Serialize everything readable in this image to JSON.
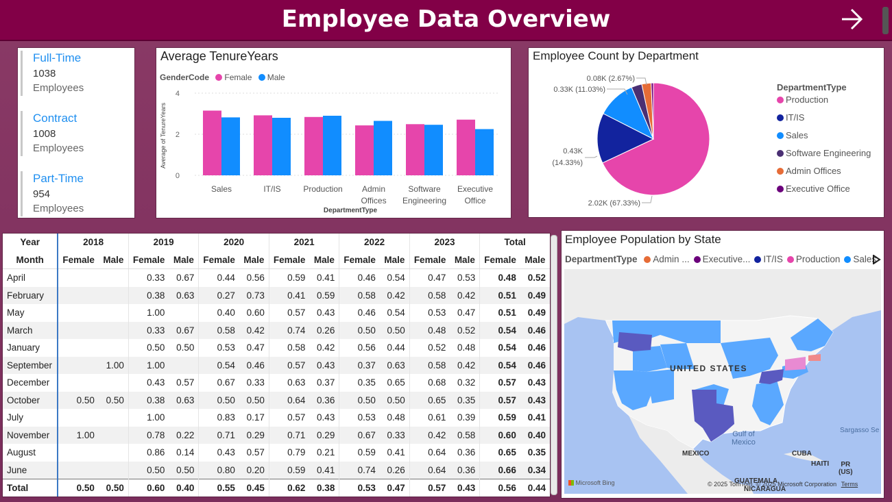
{
  "header": {
    "title": "Employee Data Overview",
    "next_icon": "arrow-right-icon"
  },
  "kpis": [
    {
      "label": "Full-Time",
      "value": "1038",
      "unit": "Employees"
    },
    {
      "label": "Contract",
      "value": "1008",
      "unit": "Employees"
    },
    {
      "label": "Part-Time",
      "value": "954",
      "unit": "Employees"
    }
  ],
  "tenure_chart": {
    "title": "Average TenureYears",
    "legend_title": "GenderCode",
    "legend": [
      "Female",
      "Male"
    ],
    "ylabel": "Average of TenureYears",
    "xlabel": "DepartmentType",
    "y_ticks": [
      "4",
      "2",
      "0"
    ],
    "colors": {
      "Female": "#e645ab",
      "Male": "#118dff"
    }
  },
  "pie_chart": {
    "title": "Employee Count by Department",
    "legend_title": "DepartmentType",
    "labels": [
      "0.08K (2.67%)",
      "0.33K (11.03%)",
      "0.43K",
      "(14.33%)",
      "2.02K (67.33%)"
    ]
  },
  "map": {
    "title": "Employee Population by State",
    "legend_title": "DepartmentType",
    "legend": [
      {
        "name": "Admin ...",
        "color": "#e66c37"
      },
      {
        "name": "Executive...",
        "color": "#6b007b"
      },
      {
        "name": "IT/IS",
        "color": "#12239e"
      },
      {
        "name": "Production",
        "color": "#e645ab"
      },
      {
        "name": "Sales",
        "color": "#118dff"
      }
    ],
    "labels": {
      "country": "UNITED STATES",
      "mexico": "MEXICO",
      "gulf1": "Gulf of",
      "gulf2": "Mexico",
      "cuba": "CUBA",
      "haiti": "HAITI",
      "pr1": "PR",
      "pr2": "(US)",
      "guatemala": "GUATEMALA",
      "nicaragua": "NICARAGUA",
      "sargasso": "Sargasso Se",
      "bing": "Microsoft Bing",
      "copyright": "© 2025 TomTom, © 2025 Microsoft Corporation",
      "terms": "Terms"
    }
  },
  "matrix": {
    "corner_top": "Year",
    "corner_bottom": "Month",
    "years": [
      "2018",
      "2019",
      "2020",
      "2021",
      "2022",
      "2023",
      "Total"
    ],
    "sub": [
      "Female",
      "Male"
    ],
    "rows": [
      {
        "month": "April",
        "vals": [
          "",
          "",
          "0.33",
          "0.67",
          "0.44",
          "0.56",
          "0.59",
          "0.41",
          "0.46",
          "0.54",
          "0.47",
          "0.53",
          "0.48",
          "0.52"
        ]
      },
      {
        "month": "February",
        "vals": [
          "",
          "",
          "0.38",
          "0.63",
          "0.27",
          "0.73",
          "0.41",
          "0.59",
          "0.58",
          "0.42",
          "0.58",
          "0.42",
          "0.51",
          "0.49"
        ]
      },
      {
        "month": "May",
        "vals": [
          "",
          "",
          "1.00",
          "",
          "0.40",
          "0.60",
          "0.57",
          "0.43",
          "0.46",
          "0.54",
          "0.53",
          "0.47",
          "0.51",
          "0.49"
        ]
      },
      {
        "month": "March",
        "vals": [
          "",
          "",
          "0.33",
          "0.67",
          "0.58",
          "0.42",
          "0.74",
          "0.26",
          "0.50",
          "0.50",
          "0.48",
          "0.52",
          "0.54",
          "0.46"
        ]
      },
      {
        "month": "January",
        "vals": [
          "",
          "",
          "0.50",
          "0.50",
          "0.53",
          "0.47",
          "0.58",
          "0.42",
          "0.56",
          "0.44",
          "0.52",
          "0.48",
          "0.54",
          "0.46"
        ]
      },
      {
        "month": "September",
        "vals": [
          "",
          "1.00",
          "1.00",
          "",
          "0.54",
          "0.46",
          "0.57",
          "0.43",
          "0.37",
          "0.63",
          "0.58",
          "0.42",
          "0.54",
          "0.46"
        ]
      },
      {
        "month": "December",
        "vals": [
          "",
          "",
          "0.43",
          "0.57",
          "0.67",
          "0.33",
          "0.63",
          "0.37",
          "0.35",
          "0.65",
          "0.68",
          "0.32",
          "0.57",
          "0.43"
        ]
      },
      {
        "month": "October",
        "vals": [
          "0.50",
          "0.50",
          "0.38",
          "0.63",
          "0.50",
          "0.50",
          "0.64",
          "0.36",
          "0.50",
          "0.50",
          "0.65",
          "0.35",
          "0.57",
          "0.43"
        ]
      },
      {
        "month": "July",
        "vals": [
          "",
          "",
          "1.00",
          "",
          "0.83",
          "0.17",
          "0.57",
          "0.43",
          "0.53",
          "0.48",
          "0.61",
          "0.39",
          "0.59",
          "0.41"
        ]
      },
      {
        "month": "November",
        "vals": [
          "1.00",
          "",
          "0.78",
          "0.22",
          "0.71",
          "0.29",
          "0.71",
          "0.29",
          "0.67",
          "0.33",
          "0.42",
          "0.58",
          "0.60",
          "0.40"
        ]
      },
      {
        "month": "August",
        "vals": [
          "",
          "",
          "0.86",
          "0.14",
          "0.43",
          "0.57",
          "0.79",
          "0.21",
          "0.59",
          "0.41",
          "0.64",
          "0.36",
          "0.65",
          "0.35"
        ]
      },
      {
        "month": "June",
        "vals": [
          "",
          "",
          "0.50",
          "0.50",
          "0.80",
          "0.20",
          "0.59",
          "0.41",
          "0.74",
          "0.26",
          "0.64",
          "0.36",
          "0.66",
          "0.34"
        ]
      }
    ],
    "total": {
      "label": "Total",
      "vals": [
        "0.50",
        "0.50",
        "0.60",
        "0.40",
        "0.55",
        "0.45",
        "0.62",
        "0.38",
        "0.53",
        "0.47",
        "0.57",
        "0.43",
        "0.56",
        "0.44"
      ]
    }
  },
  "chart_data": [
    {
      "type": "bar",
      "title": "Average TenureYears",
      "xlabel": "DepartmentType",
      "ylabel": "Average of TenureYears",
      "ylim": [
        0,
        4
      ],
      "categories": [
        "Sales",
        "IT/IS",
        "Production",
        "Admin Offices",
        "Software Engineering",
        "Executive Office"
      ],
      "category_lines": [
        [
          "Sales"
        ],
        [
          "IT/IS"
        ],
        [
          "Production"
        ],
        [
          "Admin",
          "Offices"
        ],
        [
          "Software",
          "Engineering"
        ],
        [
          "Executive",
          "Office"
        ]
      ],
      "series": [
        {
          "name": "Female",
          "values": [
            3.15,
            2.92,
            2.84,
            2.43,
            2.49,
            2.71
          ]
        },
        {
          "name": "Male",
          "values": [
            2.82,
            2.8,
            2.9,
            2.65,
            2.46,
            2.25
          ]
        }
      ],
      "legend": "top-left",
      "grid": true
    },
    {
      "type": "pie",
      "title": "Employee Count by Department",
      "legend_title": "DepartmentType",
      "legend": "right",
      "slices": [
        {
          "name": "Production",
          "value": 2020,
          "pct": 67.33,
          "color": "#e645ab"
        },
        {
          "name": "IT/IS",
          "value": 430,
          "pct": 14.33,
          "color": "#12239e"
        },
        {
          "name": "Sales",
          "value": 331,
          "pct": 11.03,
          "color": "#118dff"
        },
        {
          "name": "Software Engineering",
          "value": 90,
          "pct": 3.0,
          "color": "#4a2f73"
        },
        {
          "name": "Admin Offices",
          "value": 80,
          "pct": 2.67,
          "color": "#e66c37"
        },
        {
          "name": "Executive Office",
          "value": 19,
          "pct": 0.64,
          "color": "#6b007b"
        }
      ]
    }
  ]
}
